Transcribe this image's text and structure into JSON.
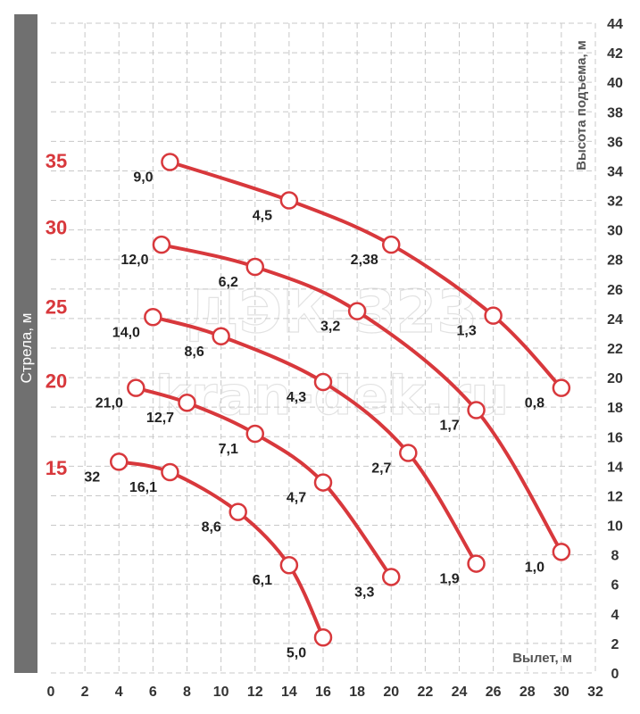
{
  "chart_data": {
    "type": "line",
    "xlabel": "Вылет, м",
    "ylabel": "Высота подъема, м",
    "side_label": "Стрела, м",
    "xlim": [
      0,
      32
    ],
    "ylim": [
      0,
      44
    ],
    "x_ticks": [
      "0",
      "2",
      "4",
      "6",
      "8",
      "10",
      "12",
      "14",
      "16",
      "18",
      "20",
      "22",
      "24",
      "26",
      "28",
      "30",
      "32"
    ],
    "y_ticks": [
      "0",
      "2",
      "4",
      "6",
      "8",
      "10",
      "12",
      "14",
      "16",
      "18",
      "20",
      "22",
      "24",
      "26",
      "28",
      "30",
      "32",
      "34",
      "36",
      "38",
      "40",
      "42",
      "44"
    ],
    "grid": true,
    "watermark": [
      "ДЭК-323",
      "kran-dek.ru"
    ],
    "colors": {
      "curve": "#d8383c",
      "side_bar": "#707070",
      "grid": "#c8c8c8"
    },
    "series": [
      {
        "name": "35",
        "label_y": 34.7,
        "points": [
          {
            "x": 7,
            "y": 34.6,
            "load": "9,0"
          },
          {
            "x": 14,
            "y": 32.0,
            "load": "4,5"
          },
          {
            "x": 20,
            "y": 29.0,
            "load": "2,38"
          },
          {
            "x": 26,
            "y": 24.2,
            "load": "1,3"
          },
          {
            "x": 30,
            "y": 19.3,
            "load": "0,8"
          }
        ]
      },
      {
        "name": "30",
        "label_y": 30.2,
        "points": [
          {
            "x": 6.5,
            "y": 29.0,
            "load": "12,0"
          },
          {
            "x": 12,
            "y": 27.5,
            "load": "6,2"
          },
          {
            "x": 18,
            "y": 24.5,
            "load": "3,2"
          },
          {
            "x": 25,
            "y": 17.8,
            "load": "1,7"
          },
          {
            "x": 30,
            "y": 8.2,
            "load": "1,0"
          }
        ]
      },
      {
        "name": "25",
        "label_y": 24.8,
        "points": [
          {
            "x": 6,
            "y": 24.1,
            "load": "14,0"
          },
          {
            "x": 10,
            "y": 22.8,
            "load": "8,6"
          },
          {
            "x": 16,
            "y": 19.7,
            "load": "4,3"
          },
          {
            "x": 21,
            "y": 14.9,
            "load": "2,7"
          },
          {
            "x": 25,
            "y": 7.4,
            "load": "1,9"
          }
        ]
      },
      {
        "name": "20",
        "label_y": 19.8,
        "points": [
          {
            "x": 5,
            "y": 19.3,
            "load": "21,0"
          },
          {
            "x": 8,
            "y": 18.3,
            "load": "12,7"
          },
          {
            "x": 12,
            "y": 16.2,
            "load": "7,1"
          },
          {
            "x": 16,
            "y": 12.9,
            "load": "4,7"
          },
          {
            "x": 20,
            "y": 6.5,
            "load": "3,3"
          }
        ]
      },
      {
        "name": "15",
        "label_y": 13.9,
        "points": [
          {
            "x": 4,
            "y": 14.3,
            "load": "32"
          },
          {
            "x": 7,
            "y": 13.6,
            "load": "16,1"
          },
          {
            "x": 11,
            "y": 10.9,
            "load": "8,6"
          },
          {
            "x": 14,
            "y": 7.3,
            "load": "6,1"
          },
          {
            "x": 16,
            "y": 2.4,
            "load": "5,0"
          }
        ]
      }
    ]
  }
}
